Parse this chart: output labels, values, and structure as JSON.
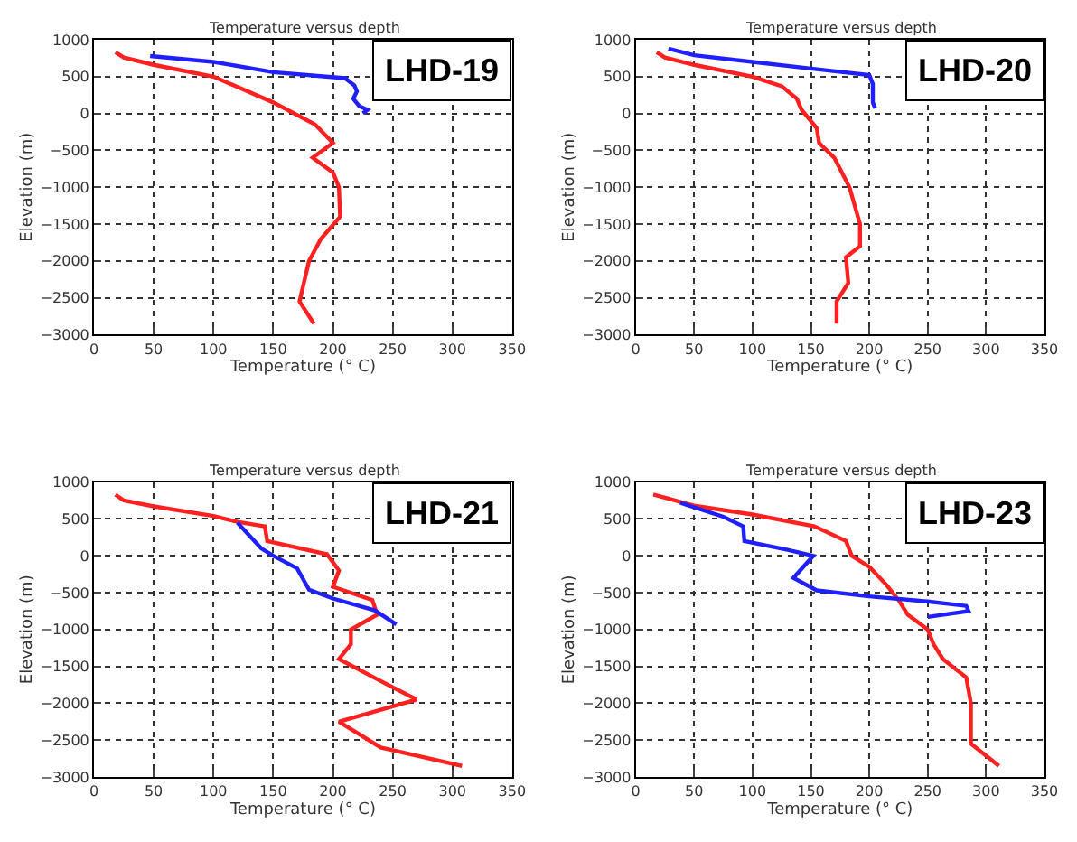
{
  "chart_data": [
    {
      "type": "line",
      "title": "Temperature versus depth",
      "xlabel": "Temperature (° C)",
      "ylabel": "Elevation (m)",
      "annotations": [
        "LHD-19"
      ],
      "xlim": [
        0,
        350
      ],
      "xticks": [
        0,
        50,
        100,
        150,
        200,
        250,
        300,
        350
      ],
      "ylim": [
        -3000,
        1000
      ],
      "yticks": [
        -3000,
        -2500,
        -2000,
        -1500,
        -1000,
        -500,
        0,
        500,
        1000
      ],
      "grid": true,
      "line_style": "solid",
      "series": [
        {
          "color": "#ff2020",
          "x": [
            18,
            25,
            50,
            100,
            150,
            185,
            200,
            183,
            200,
            205,
            206,
            190,
            180,
            172,
            184
          ],
          "values": [
            830,
            760,
            660,
            500,
            150,
            -150,
            -400,
            -600,
            -800,
            -1000,
            -1400,
            -1700,
            -2000,
            -2550,
            -2850
          ]
        },
        {
          "color": "#2020ff",
          "x": [
            47,
            100,
            150,
            210,
            218,
            220,
            217,
            222,
            229,
            225
          ],
          "values": [
            780,
            700,
            560,
            480,
            380,
            300,
            200,
            100,
            50,
            0
          ]
        }
      ]
    },
    {
      "type": "line",
      "title": "Temperature versus depth",
      "xlabel": "Temperature (° C)",
      "ylabel": "Elevation (m)",
      "annotations": [
        "LHD-20"
      ],
      "xlim": [
        0,
        350
      ],
      "xticks": [
        0,
        50,
        100,
        150,
        200,
        250,
        300,
        350
      ],
      "ylim": [
        -3000,
        1000
      ],
      "yticks": [
        -3000,
        -2500,
        -2000,
        -1500,
        -1000,
        -500,
        0,
        500,
        1000
      ],
      "grid": true,
      "line_style": "solid",
      "series": [
        {
          "color": "#ff2020",
          "x": [
            18,
            25,
            50,
            100,
            125,
            138,
            142,
            155,
            157,
            170,
            183,
            192,
            192,
            180,
            182,
            172,
            172
          ],
          "values": [
            830,
            760,
            660,
            500,
            370,
            200,
            50,
            -200,
            -400,
            -600,
            -1000,
            -1500,
            -1800,
            -1950,
            -2300,
            -2550,
            -2850
          ]
        },
        {
          "color": "#2020ff",
          "x": [
            28,
            50,
            100,
            150,
            200,
            203,
            203,
            205
          ],
          "values": [
            880,
            790,
            700,
            610,
            520,
            400,
            150,
            70
          ]
        }
      ]
    },
    {
      "type": "line",
      "title": "Temperature versus depth",
      "xlabel": "Temperature (° C)",
      "ylabel": "Elevation (m)",
      "annotations": [
        "LHD-21"
      ],
      "xlim": [
        0,
        350
      ],
      "xticks": [
        0,
        50,
        100,
        150,
        200,
        250,
        300,
        350
      ],
      "ylim": [
        -3000,
        1000
      ],
      "yticks": [
        -3000,
        -2500,
        -2000,
        -1500,
        -1000,
        -500,
        0,
        500,
        1000
      ],
      "grid": true,
      "line_style": "solid",
      "series": [
        {
          "color": "#ff2020",
          "x": [
            18,
            25,
            50,
            100,
            120,
            143,
            145,
            195,
            205,
            200,
            233,
            237,
            215,
            215,
            205,
            240,
            270,
            205,
            240,
            308
          ],
          "values": [
            830,
            750,
            670,
            540,
            460,
            400,
            200,
            20,
            -200,
            -420,
            -600,
            -800,
            -1000,
            -1200,
            -1400,
            -1700,
            -1950,
            -2250,
            -2600,
            -2850
          ]
        },
        {
          "color": "#2020ff",
          "x": [
            120,
            140,
            150,
            170,
            180,
            200,
            235,
            253
          ],
          "values": [
            450,
            100,
            0,
            -170,
            -460,
            -580,
            -740,
            -930
          ]
        }
      ]
    },
    {
      "type": "line",
      "title": "Temperature versus depth",
      "xlabel": "Temperature (° C)",
      "ylabel": "Elevation (m)",
      "annotations": [
        "LHD-23"
      ],
      "xlim": [
        0,
        350
      ],
      "xticks": [
        0,
        50,
        100,
        150,
        200,
        250,
        300,
        350
      ],
      "ylim": [
        -3000,
        1000
      ],
      "yticks": [
        -3000,
        -2500,
        -2000,
        -1500,
        -1000,
        -500,
        0,
        500,
        1000
      ],
      "grid": true,
      "line_style": "solid",
      "series": [
        {
          "color": "#ff2020",
          "x": [
            15,
            50,
            100,
            153,
            180,
            185,
            200,
            215,
            225,
            233,
            250,
            255,
            263,
            283,
            287,
            287,
            311
          ],
          "values": [
            830,
            680,
            560,
            400,
            200,
            0,
            -150,
            -400,
            -600,
            -800,
            -1000,
            -1200,
            -1400,
            -1650,
            -2000,
            -2550,
            -2850
          ]
        },
        {
          "color": "#2020ff",
          "x": [
            38,
            75,
            92,
            93,
            130,
            152,
            135,
            155,
            200,
            250,
            283,
            285,
            250
          ],
          "values": [
            720,
            530,
            400,
            200,
            80,
            0,
            -300,
            -470,
            -550,
            -620,
            -680,
            -750,
            -830
          ]
        }
      ]
    }
  ]
}
